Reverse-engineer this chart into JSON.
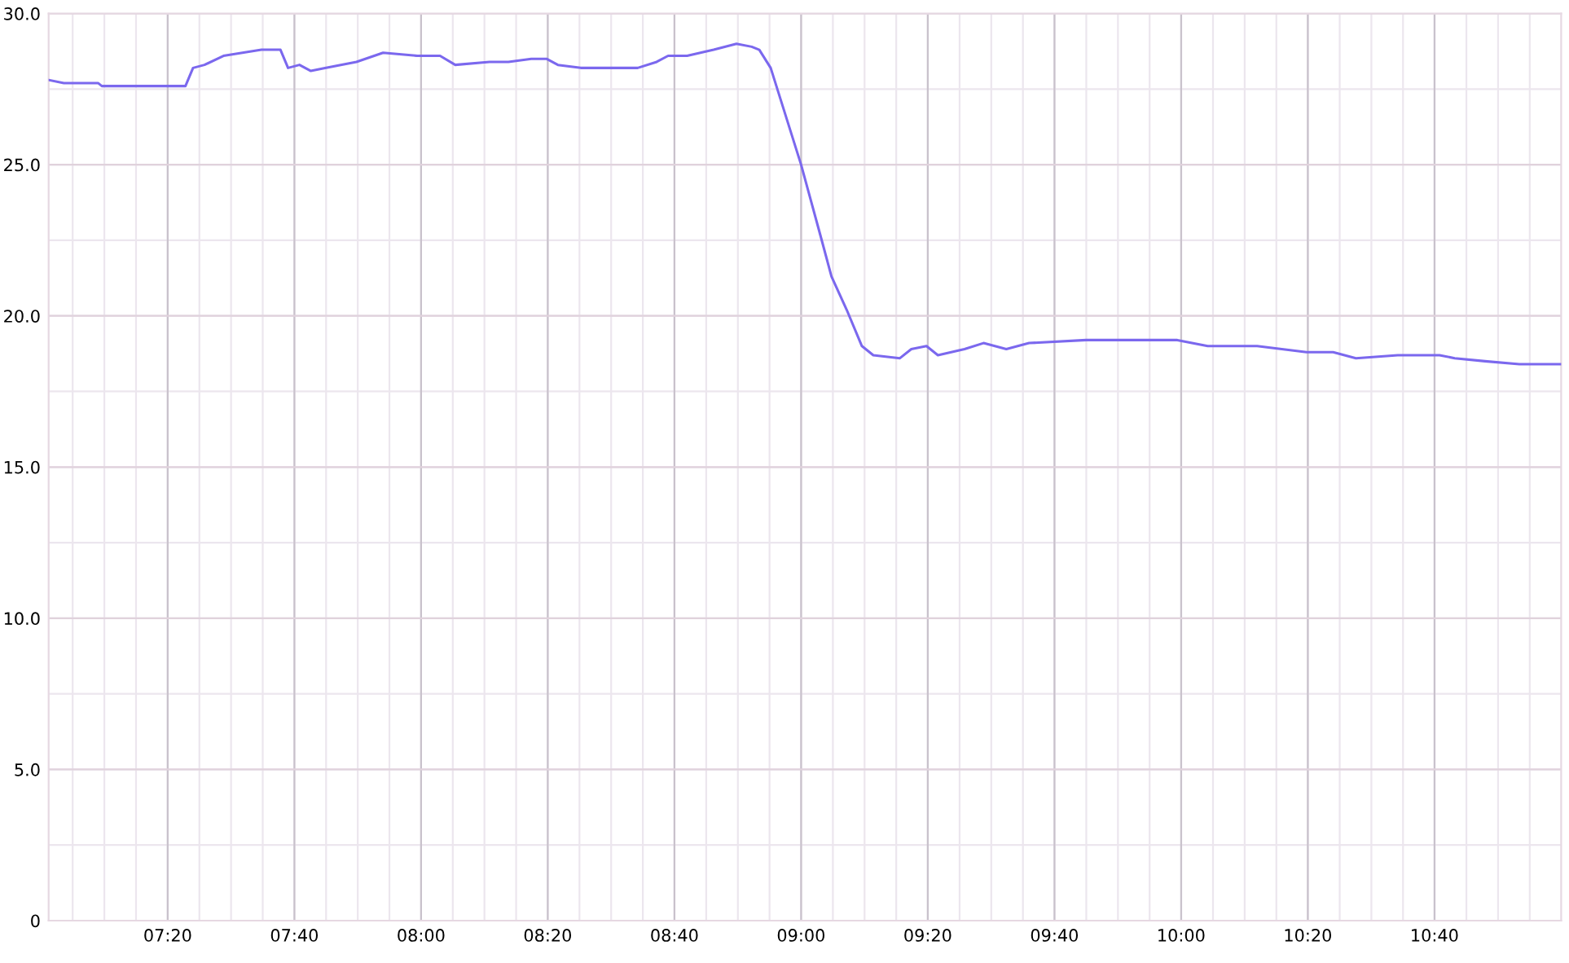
{
  "chart_data": {
    "type": "line",
    "x": [
      7.02,
      7.06,
      7.15,
      7.16,
      7.28,
      7.38,
      7.4,
      7.43,
      7.48,
      7.58,
      7.63,
      7.65,
      7.68,
      7.71,
      7.75,
      7.83,
      7.9,
      7.99,
      8.05,
      8.09,
      8.18,
      8.23,
      8.29,
      8.33,
      8.36,
      8.42,
      8.5,
      8.57,
      8.62,
      8.65,
      8.7,
      8.77,
      8.83,
      8.87,
      8.89,
      8.92,
      9.0,
      9.05,
      9.08,
      9.12,
      9.16,
      9.19,
      9.26,
      9.29,
      9.33,
      9.36,
      9.43,
      9.48,
      9.54,
      9.6,
      9.75,
      9.9,
      9.99,
      10.07,
      10.2,
      10.33,
      10.4,
      10.46,
      10.57,
      10.68,
      10.72,
      10.8,
      10.89,
      10.96,
      11.0
    ],
    "series": [
      {
        "color": "#7b68ee",
        "values": [
          27.8,
          27.7,
          27.7,
          27.6,
          27.6,
          27.6,
          28.2,
          28.3,
          28.6,
          28.8,
          28.8,
          28.2,
          28.3,
          28.1,
          28.2,
          28.4,
          28.7,
          28.6,
          28.6,
          28.3,
          28.4,
          28.4,
          28.5,
          28.5,
          28.3,
          28.2,
          28.2,
          28.2,
          28.4,
          28.6,
          28.6,
          28.8,
          29.0,
          28.9,
          28.8,
          28.2,
          25.0,
          22.7,
          21.3,
          20.2,
          19.0,
          18.7,
          18.6,
          18.9,
          19.0,
          18.7,
          18.9,
          19.1,
          18.9,
          19.1,
          19.2,
          19.2,
          19.2,
          19.0,
          19.0,
          18.8,
          18.8,
          18.6,
          18.7,
          18.7,
          18.6,
          18.5,
          18.4,
          18.4,
          18.4
        ]
      }
    ],
    "xlim": [
      7.02,
      11.0
    ],
    "xticks": [
      {
        "value": 7.3333,
        "label": "07:20"
      },
      {
        "value": 7.6667,
        "label": "07:40"
      },
      {
        "value": 8,
        "label": "08:00"
      },
      {
        "value": 8.3333,
        "label": "08:20"
      },
      {
        "value": 8.6667,
        "label": "08:40"
      },
      {
        "value": 9,
        "label": "09:00"
      },
      {
        "value": 9.3333,
        "label": "09:20"
      },
      {
        "value": 9.6667,
        "label": "09:40"
      },
      {
        "value": 10,
        "label": "10:00"
      },
      {
        "value": 10.3333,
        "label": "10:20"
      },
      {
        "value": 10.6667,
        "label": "10:40"
      }
    ],
    "ylim": [
      0,
      30
    ],
    "yticks": [
      0,
      {
        "value": 5,
        "label": "5.0"
      },
      {
        "value": 10,
        "label": "10.0"
      },
      {
        "value": 15,
        "label": "15.0"
      },
      {
        "value": 20,
        "label": "20.0"
      },
      {
        "value": 25,
        "label": "25.0"
      },
      {
        "value": 30,
        "label": "30.0"
      }
    ],
    "grid": true,
    "marker": "none",
    "line_style": "solid"
  }
}
